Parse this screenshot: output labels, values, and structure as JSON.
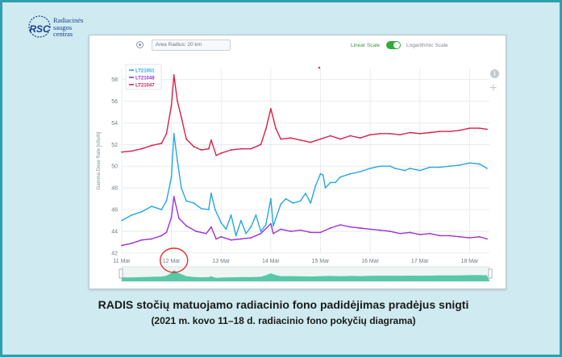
{
  "logo": {
    "text": "Radiacinės\nsaugos\ncentras",
    "mark": "RSC"
  },
  "toolbar": {
    "area_radius": "Area Radius: 20 km",
    "linear_label": "Linear Scale",
    "log_label": "Logarithmic Scale"
  },
  "icons": {
    "target": "target-icon",
    "info": "info-icon",
    "zoom": "plus-icon"
  },
  "caption": {
    "title": "RADIS stočių matuojamo radiacinio fono padidėjimas pradėjus snigti",
    "subtitle": "(2021 m. kovo 11–18 d. radiacinio fono pokyčių diagrama)"
  },
  "colors": {
    "frame": "#2f9fb0",
    "background": "#cfeaf0",
    "navigator": "#3cbf9a",
    "highlight_circle": "#e0302a"
  },
  "chart_data": {
    "type": "line",
    "ylabel": "Gamma Dose Rate [nSv/h]",
    "ylim": [
      42,
      59
    ],
    "yticks": [
      42,
      44,
      46,
      48,
      50,
      52,
      54,
      56,
      58
    ],
    "xlim": [
      11,
      18.4
    ],
    "xticks": [
      11,
      12,
      13,
      14,
      15,
      16,
      17,
      18
    ],
    "xtick_labels": [
      "11 Mar",
      "12 Mar",
      "13 Mar",
      "14 Mar",
      "15 Mar",
      "16 Mar",
      "17 Mar",
      "18 Mar"
    ],
    "legend": "top-left",
    "grid": true,
    "highlight": {
      "x": 12.05,
      "label_index": 1
    },
    "series": [
      {
        "name": "LT21051",
        "color": "#27a7e0",
        "points": [
          [
            11.0,
            45.0
          ],
          [
            11.2,
            45.5
          ],
          [
            11.4,
            45.8
          ],
          [
            11.6,
            46.3
          ],
          [
            11.8,
            46.0
          ],
          [
            11.9,
            46.8
          ],
          [
            12.0,
            49.0
          ],
          [
            12.05,
            53.0
          ],
          [
            12.12,
            50.5
          ],
          [
            12.2,
            48.0
          ],
          [
            12.3,
            46.8
          ],
          [
            12.45,
            46.6
          ],
          [
            12.6,
            46.1
          ],
          [
            12.75,
            46.0
          ],
          [
            12.8,
            47.5
          ],
          [
            12.88,
            46.0
          ],
          [
            13.0,
            44.8
          ],
          [
            13.1,
            44.2
          ],
          [
            13.2,
            45.5
          ],
          [
            13.3,
            43.6
          ],
          [
            13.4,
            45.0
          ],
          [
            13.5,
            43.8
          ],
          [
            13.6,
            44.4
          ],
          [
            13.7,
            45.5
          ],
          [
            13.8,
            44.0
          ],
          [
            13.9,
            44.6
          ],
          [
            14.0,
            47.0
          ],
          [
            14.05,
            44.5
          ],
          [
            14.2,
            46.5
          ],
          [
            14.3,
            47.0
          ],
          [
            14.45,
            46.6
          ],
          [
            14.6,
            46.8
          ],
          [
            14.7,
            47.5
          ],
          [
            14.8,
            46.6
          ],
          [
            14.9,
            48.2
          ],
          [
            15.0,
            49.3
          ],
          [
            15.05,
            49.2
          ],
          [
            15.1,
            48.0
          ],
          [
            15.2,
            48.5
          ],
          [
            15.3,
            48.5
          ],
          [
            15.4,
            49.0
          ],
          [
            15.6,
            49.3
          ],
          [
            15.8,
            49.5
          ],
          [
            16.0,
            49.8
          ],
          [
            16.2,
            50.0
          ],
          [
            16.4,
            50.0
          ],
          [
            16.5,
            49.8
          ],
          [
            16.7,
            49.6
          ],
          [
            16.8,
            49.8
          ],
          [
            17.0,
            49.6
          ],
          [
            17.2,
            49.9
          ],
          [
            17.4,
            49.9
          ],
          [
            17.6,
            50.0
          ],
          [
            17.8,
            50.1
          ],
          [
            18.0,
            50.3
          ],
          [
            18.2,
            50.2
          ],
          [
            18.35,
            49.8
          ]
        ]
      },
      {
        "name": "LT21048",
        "color": "#9a33d6",
        "points": [
          [
            11.0,
            42.7
          ],
          [
            11.2,
            42.9
          ],
          [
            11.4,
            43.2
          ],
          [
            11.6,
            43.3
          ],
          [
            11.8,
            43.6
          ],
          [
            11.9,
            43.9
          ],
          [
            12.0,
            45.3
          ],
          [
            12.05,
            47.2
          ],
          [
            12.15,
            45.2
          ],
          [
            12.3,
            44.5
          ],
          [
            12.5,
            44.0
          ],
          [
            12.7,
            43.8
          ],
          [
            12.8,
            44.4
          ],
          [
            12.9,
            43.3
          ],
          [
            13.0,
            43.5
          ],
          [
            13.2,
            43.2
          ],
          [
            13.4,
            43.3
          ],
          [
            13.6,
            43.4
          ],
          [
            13.8,
            43.8
          ],
          [
            14.0,
            44.7
          ],
          [
            14.05,
            43.8
          ],
          [
            14.2,
            44.2
          ],
          [
            14.4,
            44.0
          ],
          [
            14.6,
            44.1
          ],
          [
            14.8,
            43.9
          ],
          [
            15.0,
            43.9
          ],
          [
            15.2,
            44.3
          ],
          [
            15.4,
            44.6
          ],
          [
            15.6,
            44.4
          ],
          [
            15.8,
            44.3
          ],
          [
            16.0,
            44.2
          ],
          [
            16.2,
            44.1
          ],
          [
            16.4,
            44.0
          ],
          [
            16.6,
            43.8
          ],
          [
            16.8,
            43.9
          ],
          [
            17.0,
            43.7
          ],
          [
            17.2,
            43.8
          ],
          [
            17.4,
            43.6
          ],
          [
            17.6,
            43.6
          ],
          [
            17.8,
            43.5
          ],
          [
            18.0,
            43.4
          ],
          [
            18.2,
            43.5
          ],
          [
            18.35,
            43.3
          ]
        ]
      },
      {
        "name": "LT21047",
        "color": "#d8204a",
        "points": [
          [
            11.0,
            51.3
          ],
          [
            11.2,
            51.4
          ],
          [
            11.4,
            51.6
          ],
          [
            11.6,
            51.9
          ],
          [
            11.8,
            52.1
          ],
          [
            11.9,
            53.0
          ],
          [
            12.0,
            55.6
          ],
          [
            12.05,
            58.4
          ],
          [
            12.12,
            56.0
          ],
          [
            12.2,
            54.5
          ],
          [
            12.3,
            52.5
          ],
          [
            12.45,
            51.8
          ],
          [
            12.6,
            51.5
          ],
          [
            12.75,
            51.6
          ],
          [
            12.8,
            52.4
          ],
          [
            12.9,
            51.0
          ],
          [
            13.0,
            51.2
          ],
          [
            13.2,
            51.5
          ],
          [
            13.4,
            51.6
          ],
          [
            13.6,
            51.6
          ],
          [
            13.8,
            52.0
          ],
          [
            13.9,
            53.4
          ],
          [
            14.0,
            55.3
          ],
          [
            14.1,
            53.5
          ],
          [
            14.2,
            52.5
          ],
          [
            14.4,
            52.6
          ],
          [
            14.6,
            52.4
          ],
          [
            14.8,
            52.2
          ],
          [
            15.0,
            52.5
          ],
          [
            15.2,
            52.8
          ],
          [
            15.4,
            52.5
          ],
          [
            15.6,
            52.8
          ],
          [
            15.8,
            52.6
          ],
          [
            16.0,
            52.9
          ],
          [
            16.2,
            53.0
          ],
          [
            16.4,
            53.0
          ],
          [
            16.6,
            52.9
          ],
          [
            16.8,
            53.1
          ],
          [
            17.0,
            53.0
          ],
          [
            17.2,
            53.1
          ],
          [
            17.4,
            53.2
          ],
          [
            17.6,
            53.2
          ],
          [
            17.8,
            53.3
          ],
          [
            18.0,
            53.5
          ],
          [
            18.2,
            53.5
          ],
          [
            18.35,
            53.4
          ]
        ]
      }
    ]
  }
}
